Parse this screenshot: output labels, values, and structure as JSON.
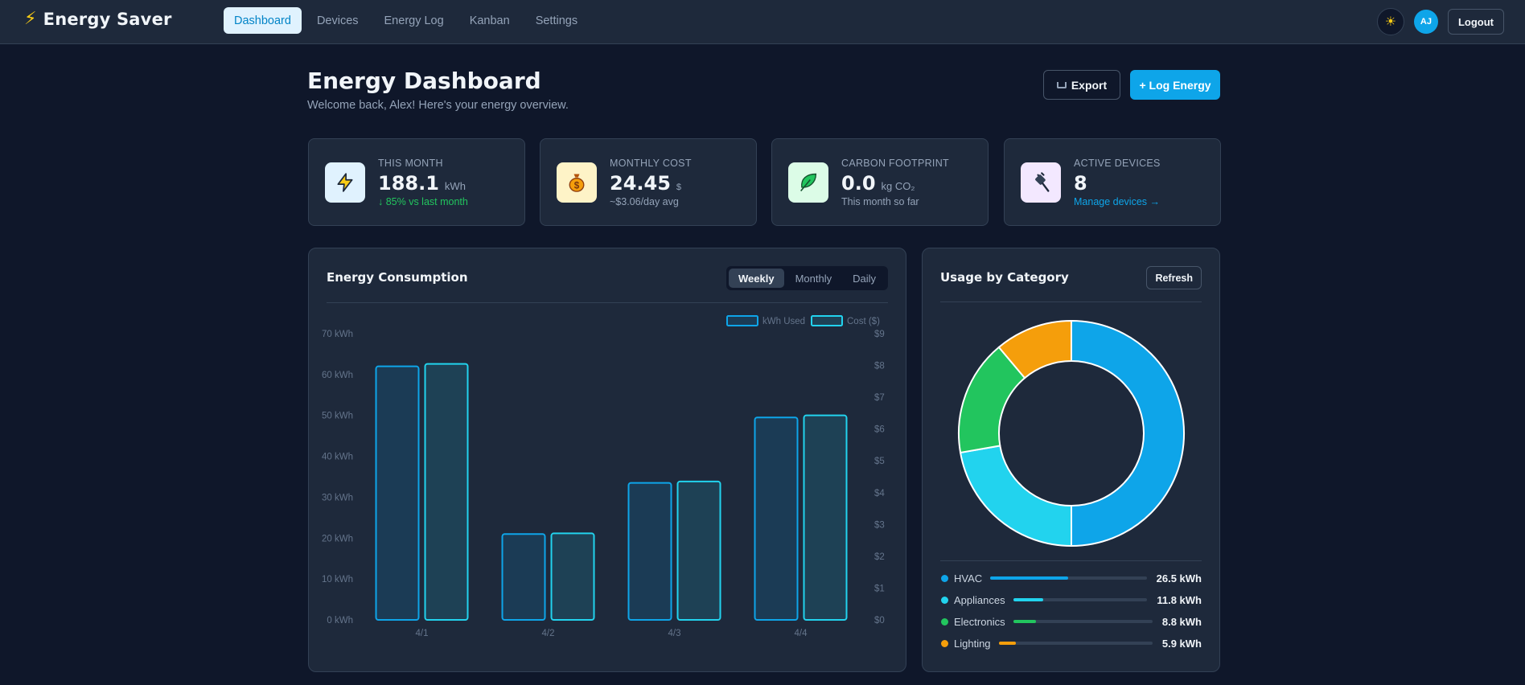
{
  "app": {
    "brand": "Energy Saver",
    "nav": [
      "Dashboard",
      "Devices",
      "Energy Log",
      "Kanban",
      "Settings"
    ],
    "active_nav": "Dashboard",
    "avatar_initials": "AJ",
    "logout_label": "Logout"
  },
  "header": {
    "title": "Energy Dashboard",
    "subtitle": "Welcome back, Alex! Here's your energy overview.",
    "export_label": "Export",
    "log_label": "+ Log Energy"
  },
  "stats": [
    {
      "label": "THIS MONTH",
      "value": "188.1",
      "unit": "kWh",
      "footer": "↓ 85% vs last month",
      "icon": "lightning-icon",
      "icon_bg": "#e0f2fe"
    },
    {
      "label": "MONTHLY COST",
      "value": "24.45",
      "unit": "$",
      "footer": "~$3.06/day avg",
      "icon": "money-bag-icon",
      "icon_bg": "#fef3c7"
    },
    {
      "label": "CARBON FOOTPRINT",
      "value": "0.0",
      "unit": "kg CO₂",
      "footer": "This month so far",
      "icon": "leaf-icon",
      "icon_bg": "#dcfce7"
    },
    {
      "label": "ACTIVE DEVICES",
      "value": "8",
      "unit": "",
      "footer": "Manage devices →",
      "icon": "plug-icon",
      "icon_bg": "#f3e8ff"
    }
  ],
  "consumption": {
    "title": "Energy Consumption",
    "tabs": [
      "Weekly",
      "Monthly",
      "Daily"
    ],
    "active_tab": "Weekly"
  },
  "chart_data": {
    "type": "bar",
    "title": "Energy Consumption",
    "categories": [
      "4/1",
      "4/2",
      "4/3",
      "4/4"
    ],
    "series": [
      {
        "name": "kWh Used",
        "axis": "left",
        "values": [
          62,
          21,
          33.5,
          49.5
        ],
        "color": "#0ea5e9"
      },
      {
        "name": "Cost ($)",
        "axis": "right",
        "values": [
          8.05,
          2.72,
          4.35,
          6.43
        ],
        "color": "#22d3ee"
      }
    ],
    "y_left": {
      "min": 0,
      "max": 70,
      "step": 10,
      "tick_labels": [
        "0 kWh",
        "10 kWh",
        "20 kWh",
        "30 kWh",
        "40 kWh",
        "50 kWh",
        "60 kWh",
        "70 kWh"
      ]
    },
    "y_right": {
      "min": 0,
      "max": 9,
      "step": 1,
      "tick_labels": [
        "$0",
        "$1",
        "$2",
        "$3",
        "$4",
        "$5",
        "$6",
        "$7",
        "$8",
        "$9"
      ]
    },
    "legend_position": "top-right",
    "grid": false
  },
  "category_panel": {
    "title": "Usage by Category",
    "refresh_label": "Refresh",
    "items": [
      {
        "name": "HVAC",
        "value": 26.5,
        "label": "26.5 kWh",
        "color": "#0ea5e9"
      },
      {
        "name": "Appliances",
        "value": 11.8,
        "label": "11.8 kWh",
        "color": "#22d3ee"
      },
      {
        "name": "Electronics",
        "value": 8.8,
        "label": "8.8 kWh",
        "color": "#22c55e"
      },
      {
        "name": "Lighting",
        "value": 5.9,
        "label": "5.9 kWh",
        "color": "#f59e0b"
      }
    ]
  }
}
